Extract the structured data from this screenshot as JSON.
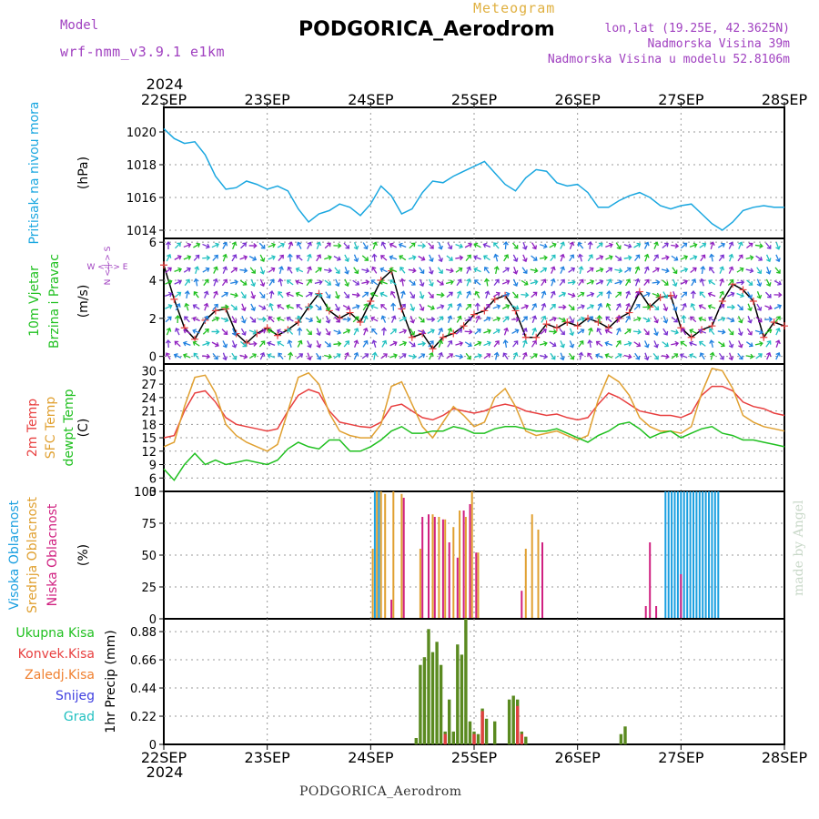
{
  "header": {
    "title": "PODGORICA_Aerodrom",
    "meteogram_label": "Meteogram",
    "model_label": "Model",
    "model_name": "wrf-nmm_v3.9.1 e1km",
    "lonlat": "lon,lat (19.25E, 42.3625N)",
    "elevation": "Nadmorska Visina 39m",
    "model_elevation": "Nadmorska Visina u modelu 52.8106m",
    "footer": "PODGORICA_Aerodrom",
    "credit": "made by Angel"
  },
  "colors": {
    "pressure": "#1aa7e0",
    "temp2m": "#e84040",
    "sfc": "#e0a030",
    "dewpt": "#20c020",
    "high_cloud": "#1a9fe0",
    "mid_cloud": "#e0a030",
    "low_cloud": "#d02080",
    "precip": "#5a8a20",
    "convective": "#e04040"
  },
  "time_axis": {
    "year": "2024",
    "ticks": [
      "22SEP",
      "23SEP",
      "24SEP",
      "25SEP",
      "26SEP",
      "27SEP",
      "28SEP"
    ]
  },
  "chart_data": [
    {
      "type": "line",
      "panel": "pressure",
      "ylabel_outer": "Pritisak na nivou mora",
      "ylabel_inner": "(hPa)",
      "ylim": [
        1013.5,
        1021.5
      ],
      "yticks": [
        "1014",
        "1016",
        "1018",
        "1020"
      ],
      "series": [
        {
          "name": "",
          "color": "#1aa7e0",
          "x": [
            0,
            0.1,
            0.2,
            0.3,
            0.4,
            0.5,
            0.6,
            0.7,
            0.8,
            0.9,
            1,
            1.1,
            1.2,
            1.3,
            1.4,
            1.5,
            1.6,
            1.7,
            1.8,
            1.9,
            2,
            2.1,
            2.2,
            2.3,
            2.4,
            2.5,
            2.6,
            2.7,
            2.8,
            2.9,
            3,
            3.1,
            3.2,
            3.3,
            3.4,
            3.5,
            3.6,
            3.7,
            3.8,
            3.9,
            4,
            4.1,
            4.2,
            4.3,
            4.4,
            4.5,
            4.6,
            4.7,
            4.8,
            4.9,
            5,
            5.1,
            5.2,
            5.3,
            5.4,
            5.5,
            5.6,
            5.7,
            5.8,
            5.9,
            6
          ],
          "y": [
            1020.2,
            1019.6,
            1019.3,
            1019.4,
            1018.6,
            1017.3,
            1016.5,
            1016.6,
            1017.0,
            1016.8,
            1016.5,
            1016.7,
            1016.4,
            1015.3,
            1014.5,
            1015.0,
            1015.2,
            1015.6,
            1015.4,
            1014.9,
            1015.6,
            1016.7,
            1016.1,
            1015.0,
            1015.3,
            1016.3,
            1017.0,
            1016.9,
            1017.3,
            1017.6,
            1017.9,
            1018.2,
            1017.5,
            1016.8,
            1016.4,
            1017.2,
            1017.7,
            1017.6,
            1016.9,
            1016.7,
            1016.8,
            1016.3,
            1015.4,
            1015.4,
            1015.8,
            1016.1,
            1016.3,
            1016.0,
            1015.5,
            1015.3,
            1015.5,
            1015.6,
            1015.0,
            1014.4,
            1014.0,
            1014.5,
            1015.2,
            1015.4,
            1015.5,
            1015.4,
            1015.4
          ]
        }
      ]
    },
    {
      "type": "line",
      "panel": "wind",
      "ylabel_outer": "10m Vjetar Brzina i Pravac",
      "ylabel_inner": "(m/s)",
      "compass_label": "W <-|-> E",
      "compass_vertical": "N <-|-> S",
      "ylim": [
        -0.4,
        6.2
      ],
      "yticks": [
        "0",
        "2",
        "4",
        "6"
      ],
      "series": [
        {
          "name": "",
          "color": "#000000",
          "x": [
            0,
            0.1,
            0.2,
            0.3,
            0.4,
            0.5,
            0.6,
            0.7,
            0.8,
            0.9,
            1,
            1.1,
            1.2,
            1.3,
            1.4,
            1.5,
            1.6,
            1.7,
            1.8,
            1.9,
            2,
            2.1,
            2.2,
            2.3,
            2.4,
            2.5,
            2.6,
            2.7,
            2.8,
            2.9,
            3,
            3.1,
            3.2,
            3.3,
            3.4,
            3.5,
            3.6,
            3.7,
            3.8,
            3.9,
            4,
            4.1,
            4.2,
            4.3,
            4.4,
            4.5,
            4.6,
            4.7,
            4.8,
            4.9,
            5,
            5.1,
            5.2,
            5.3,
            5.4,
            5.5,
            5.6,
            5.7,
            5.8,
            5.9,
            6
          ],
          "y": [
            4.8,
            3.0,
            1.5,
            0.9,
            1.9,
            2.4,
            2.5,
            1.2,
            0.7,
            1.2,
            1.5,
            1.1,
            1.4,
            1.8,
            2.6,
            3.3,
            2.4,
            2.0,
            2.3,
            1.8,
            2.9,
            4.0,
            4.5,
            2.5,
            1.0,
            1.2,
            0.4,
            1.0,
            1.2,
            1.6,
            2.2,
            2.4,
            3.0,
            3.2,
            2.4,
            1.0,
            1.0,
            1.7,
            1.5,
            1.8,
            1.6,
            2.0,
            1.8,
            1.5,
            2.0,
            2.3,
            3.4,
            2.6,
            3.1,
            3.2,
            1.5,
            1.0,
            1.4,
            1.6,
            2.9,
            3.8,
            3.5,
            2.9,
            1.0,
            1.8,
            1.6
          ]
        }
      ]
    },
    {
      "type": "line",
      "panel": "temperature",
      "ylabel_outer": [
        "2m Temp",
        "SFC Temp",
        "dewpt Temp"
      ],
      "ylabel_inner": "(C)",
      "ylim": [
        3,
        31.5
      ],
      "yticks": [
        "3",
        "6",
        "9",
        "12",
        "15",
        "18",
        "21",
        "24",
        "27",
        "30"
      ],
      "x": [
        0,
        0.1,
        0.2,
        0.3,
        0.4,
        0.5,
        0.6,
        0.7,
        0.8,
        0.9,
        1,
        1.1,
        1.2,
        1.3,
        1.4,
        1.5,
        1.6,
        1.7,
        1.8,
        1.9,
        2,
        2.1,
        2.2,
        2.3,
        2.4,
        2.5,
        2.6,
        2.7,
        2.8,
        2.9,
        3,
        3.1,
        3.2,
        3.3,
        3.4,
        3.5,
        3.6,
        3.7,
        3.8,
        3.9,
        4,
        4.1,
        4.2,
        4.3,
        4.4,
        4.5,
        4.6,
        4.7,
        4.8,
        4.9,
        5,
        5.1,
        5.2,
        5.3,
        5.4,
        5.5,
        5.6,
        5.7,
        5.8,
        5.9,
        6
      ],
      "series": [
        {
          "name": "2m Temp",
          "color": "#e84040",
          "y": [
            15.0,
            15.5,
            21.0,
            25.0,
            25.5,
            23.0,
            19.5,
            18.0,
            17.5,
            17.0,
            16.5,
            17.0,
            21.0,
            24.5,
            25.8,
            25.0,
            21.0,
            18.5,
            18.0,
            17.5,
            17.3,
            18.5,
            22.0,
            22.5,
            21.0,
            19.5,
            19.0,
            20.0,
            21.5,
            21.0,
            20.5,
            21.0,
            22.0,
            22.5,
            22.0,
            21.0,
            20.5,
            20.0,
            20.3,
            19.5,
            19.0,
            19.5,
            22.5,
            25.0,
            24.0,
            22.5,
            21.0,
            20.5,
            20.0,
            20.0,
            19.5,
            20.5,
            24.5,
            26.5,
            26.5,
            25.5,
            23.0,
            22.0,
            21.5,
            20.5,
            20.0
          ]
        },
        {
          "name": "SFC Temp",
          "color": "#e0a030",
          "y": [
            13.0,
            14.0,
            22.0,
            28.5,
            29.0,
            25.0,
            18.0,
            15.5,
            14.0,
            13.0,
            12.0,
            13.5,
            21.0,
            28.5,
            29.5,
            27.0,
            20.5,
            16.5,
            15.5,
            15.0,
            15.0,
            18.0,
            26.5,
            27.5,
            22.5,
            17.5,
            15.0,
            18.5,
            22.0,
            20.0,
            17.5,
            18.5,
            24.0,
            26.0,
            22.0,
            16.5,
            15.5,
            16.0,
            16.5,
            15.5,
            14.5,
            15.5,
            23.5,
            29.0,
            27.5,
            24.5,
            19.5,
            17.5,
            16.5,
            16.5,
            16.0,
            17.5,
            25.0,
            30.5,
            30.0,
            26.0,
            20.0,
            18.5,
            17.5,
            17.0,
            16.5
          ]
        },
        {
          "name": "dewpt Temp",
          "color": "#20c020",
          "y": [
            8.0,
            5.5,
            9.0,
            11.5,
            9.0,
            10.0,
            9.0,
            9.5,
            10.0,
            9.5,
            9.0,
            10.0,
            12.5,
            14.0,
            13.0,
            12.5,
            14.5,
            14.5,
            12.0,
            12.0,
            13.0,
            14.5,
            16.5,
            17.5,
            16.0,
            16.0,
            16.5,
            16.5,
            17.5,
            17.0,
            16.0,
            16.0,
            17.0,
            17.5,
            17.5,
            17.0,
            16.5,
            16.5,
            17.0,
            16.0,
            15.0,
            14.0,
            15.5,
            16.5,
            18.0,
            18.5,
            17.0,
            15.0,
            16.0,
            16.5,
            15.0,
            16.0,
            17.0,
            17.5,
            16.0,
            15.5,
            14.5,
            14.5,
            14.0,
            13.5,
            13.0
          ]
        }
      ]
    },
    {
      "type": "bar",
      "panel": "clouds",
      "ylabel_outer": [
        "Visoka Oblacnost",
        "Srednja Oblacnost",
        "Niska Oblacnost"
      ],
      "ylabel_inner": "(%)",
      "ylim": [
        0,
        100
      ],
      "yticks": [
        "0",
        "25",
        "50",
        "75",
        "100"
      ],
      "series": [
        {
          "name": "Visoka Oblacnost",
          "color": "#1a9fe0",
          "x": [
            2.04,
            2.08,
            4.85,
            4.88,
            4.91,
            4.94,
            4.97,
            5.0,
            5.03,
            5.06,
            5.09,
            5.12,
            5.15,
            5.18,
            5.21,
            5.24,
            5.27,
            5.3,
            5.33,
            5.36
          ],
          "y": [
            100,
            100,
            100,
            100,
            100,
            100,
            100,
            100,
            100,
            100,
            100,
            100,
            100,
            100,
            100,
            100,
            100,
            100,
            100,
            100
          ]
        },
        {
          "name": "Srednja Oblacnost",
          "color": "#e0a030",
          "x": [
            2.02,
            2.06,
            2.1,
            2.14,
            2.22,
            2.3,
            2.48,
            2.6,
            2.66,
            2.72,
            2.8,
            2.86,
            2.92,
            2.98,
            3.04,
            3.5,
            3.56,
            3.62
          ],
          "y": [
            55,
            100,
            100,
            98,
            100,
            98,
            55,
            82,
            80,
            78,
            72,
            85,
            80,
            100,
            52,
            55,
            82,
            70
          ]
        },
        {
          "name": "Niska Oblacnost",
          "color": "#d02080",
          "x": [
            2.2,
            2.32,
            2.5,
            2.56,
            2.62,
            2.7,
            2.76,
            2.84,
            2.9,
            2.96,
            3.02,
            3.46,
            3.66,
            4.66,
            4.7,
            4.76,
            5.0
          ],
          "y": [
            15,
            95,
            80,
            82,
            80,
            78,
            60,
            48,
            85,
            90,
            52,
            22,
            60,
            10,
            60,
            10,
            35
          ]
        }
      ]
    },
    {
      "type": "bar",
      "panel": "precip",
      "ylabel_inner": "1hr Precip (mm)",
      "legend": [
        "Ukupna Kisa",
        "Konvek.Kisa",
        "Zaledj.Kisa",
        "Snijeg",
        "Grad"
      ],
      "legend_colors": [
        "#20c020",
        "#e84040",
        "#f08030",
        "#4040e0",
        "#20c0c0"
      ],
      "ylim": [
        0,
        0.98
      ],
      "yticks": [
        "0",
        "0.22",
        "0.44",
        "0.66",
        "0.88"
      ],
      "series": [
        {
          "name": "Ukupna Kisa",
          "color": "#5a8a20",
          "x": [
            2.44,
            2.48,
            2.52,
            2.56,
            2.6,
            2.64,
            2.68,
            2.72,
            2.76,
            2.8,
            2.84,
            2.88,
            2.92,
            2.96,
            3.0,
            3.04,
            3.08,
            3.12,
            3.2,
            3.34,
            3.38,
            3.42,
            3.46,
            3.5,
            4.42,
            4.46
          ],
          "y": [
            0.05,
            0.62,
            0.68,
            0.9,
            0.72,
            0.8,
            0.62,
            0.1,
            0.35,
            0.1,
            0.78,
            0.7,
            0.98,
            0.18,
            0.1,
            0.08,
            0.28,
            0.2,
            0.18,
            0.35,
            0.38,
            0.35,
            0.1,
            0.06,
            0.08,
            0.14
          ]
        },
        {
          "name": "Konvek.Kisa",
          "color": "#e04040",
          "x": [
            2.72,
            3.0,
            3.08,
            3.42,
            3.46
          ],
          "y": [
            0.08,
            0.08,
            0.26,
            0.3,
            0.08
          ]
        }
      ]
    }
  ]
}
